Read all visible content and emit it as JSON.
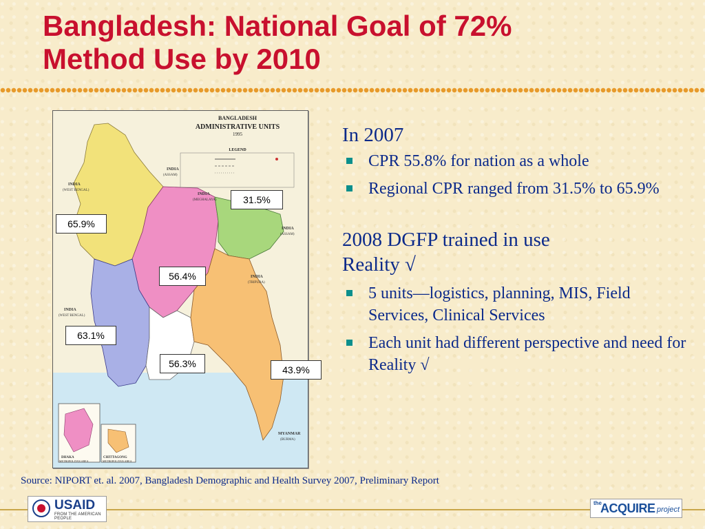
{
  "title": {
    "line1": "Bangladesh: National Goal of 72%",
    "line2": "Method Use by 2010"
  },
  "map": {
    "header_line1": "BANGLADESH",
    "header_line2": "ADMINISTRATIVE UNITS",
    "header_year": "1995",
    "legend_title": "LEGEND",
    "labels": {
      "india_assam_nw": "INDIA",
      "india_assam_nw_sub": "(ASSAM)",
      "india_west_bengal_top": "INDIA",
      "india_west_bengal_top_sub": "(WEST BENGAL)",
      "india_meghalaya": "INDIA",
      "india_meghalaya_sub": "(MEGHALAYA)",
      "india_assam_e": "INDIA",
      "india_assam_e_sub": "(ASSAM)",
      "india_tripura": "INDIA",
      "india_tripura_sub": "(TRIPURA)",
      "india_west_bengal_low": "INDIA",
      "india_west_bengal_low_sub": "(WEST BENGAL)",
      "myanmar": "MYANMAR",
      "myanmar_sub": "(BURMA)",
      "dhaka_metro_line1": "DHAKA",
      "dhaka_metro_line2": "METROPOLITAN AREA",
      "chittagong_metro_line1": "CHITTAGONG",
      "chittagong_metro_line2": "METROPOLITAN AREA"
    },
    "callouts": {
      "sylhet": "31.5%",
      "rajshahi": "65.9%",
      "dhaka": "56.4%",
      "khulna": "63.1%",
      "barisal": "56.3%",
      "chittagong": "43.9%"
    },
    "colors": {
      "rajshahi": "#f2e27a",
      "dhaka": "#ef8fc4",
      "sylhet": "#a8d77c",
      "khulna": "#a9b0e6",
      "chittagong": "#f7c074",
      "barisal": "#ffffff",
      "water": "#cfe8f3",
      "neighbour": "#f6f1dc"
    }
  },
  "content": {
    "section1_heading": "In 2007",
    "bullets1": [
      "CPR 55.8% for nation as a whole",
      "Regional  CPR ranged from 31.5% to 65.9%"
    ],
    "section2_heading_line1": "2008 DGFP trained in use",
    "section2_heading_line2": "Reality √",
    "bullets2": [
      "5 units—logistics, planning, MIS, Field Services, Clinical Services",
      "Each unit had different perspective and need for Reality √"
    ]
  },
  "source": "Source: NIPORT et. al. 2007, Bangladesh Demographic and Health Survey 2007, Preliminary Report",
  "logos": {
    "usaid_text": "USAID",
    "usaid_tagline": "FROM THE AMERICAN PEOPLE",
    "acquire_the": "the",
    "acquire_main": "ACQUIRE",
    "acquire_project": "project"
  },
  "accent_colors": {
    "title_red": "#c8102e",
    "body_blue": "#0c2a8a",
    "bullet_teal": "#0b8f8c",
    "dots_orange": "#e79a2b"
  }
}
